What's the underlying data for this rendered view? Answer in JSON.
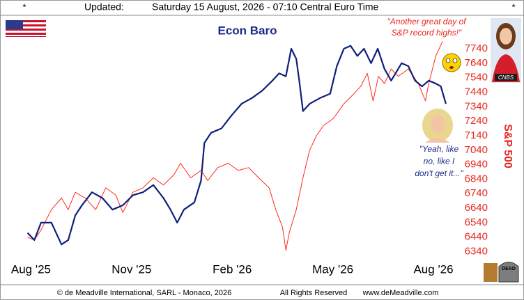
{
  "header": {
    "left_mark": "*",
    "label": "Updated:",
    "timestamp": "Saturday 15 August, 2026 - 07:10 Central Euro Time",
    "right_mark": "*"
  },
  "chart_data": {
    "type": "line",
    "title": "Econ Baro",
    "y_axis_label": "S&P 500",
    "annotations": [
      {
        "lines": [
          "\"Another great day of",
          "S&P record highs!\""
        ],
        "color": "#e8281e"
      },
      {
        "lines": [
          "\"Yeah, like",
          "no, like I",
          "don't get it...\""
        ],
        "color": "#1a2a8a"
      }
    ],
    "xlim": [
      -0.3,
      13.1
    ],
    "xticks": [
      {
        "value": 0,
        "label": "Aug '25"
      },
      {
        "value": 3,
        "label": "Nov '25"
      },
      {
        "value": 6,
        "label": "Feb '26"
      },
      {
        "value": 9,
        "label": "May '26"
      },
      {
        "value": 12,
        "label": "Aug '26"
      }
    ],
    "ylim": [
      6290,
      7980
    ],
    "yticks": [
      6340,
      6440,
      6540,
      6640,
      6740,
      6840,
      6940,
      7040,
      7140,
      7240,
      7340,
      7440,
      7540,
      7640,
      7740
    ],
    "series": [
      {
        "name": "S&P 500",
        "color": "#ff2a1a",
        "x": [
          -0.1,
          0.1,
          0.3,
          0.61,
          0.91,
          1.11,
          1.32,
          1.62,
          1.93,
          2.23,
          2.53,
          2.74,
          3.04,
          3.34,
          3.65,
          3.95,
          4.26,
          4.46,
          4.76,
          5.07,
          5.27,
          5.57,
          5.88,
          6.18,
          6.49,
          6.79,
          7.1,
          7.3,
          7.5,
          7.6,
          7.7,
          7.91,
          8.11,
          8.31,
          8.51,
          8.72,
          9.02,
          9.33,
          9.63,
          9.83,
          10.03,
          10.2,
          10.36,
          10.54,
          10.74,
          10.95,
          11.25,
          11.55,
          11.76,
          11.86,
          12.07,
          12.27
        ],
        "values": [
          6440,
          6420,
          6490,
          6630,
          6710,
          6630,
          6750,
          6710,
          6630,
          6780,
          6730,
          6610,
          6750,
          6780,
          6850,
          6800,
          6870,
          6950,
          6850,
          6900,
          6830,
          6920,
          6950,
          6900,
          6920,
          6850,
          6780,
          6630,
          6510,
          6350,
          6470,
          6630,
          6850,
          7040,
          7140,
          7210,
          7260,
          7360,
          7430,
          7480,
          7570,
          7380,
          7550,
          7500,
          7600,
          7550,
          7600,
          7500,
          7380,
          7500,
          7690,
          7790
        ]
      },
      {
        "name": "Econ Baro",
        "color": "#0d1f7a",
        "x": [
          -0.1,
          0.1,
          0.3,
          0.61,
          0.91,
          1.11,
          1.32,
          1.52,
          1.82,
          2.13,
          2.43,
          2.74,
          3.04,
          3.34,
          3.65,
          3.95,
          4.16,
          4.36,
          4.56,
          4.87,
          5.07,
          5.17,
          5.37,
          5.68,
          5.98,
          6.28,
          6.59,
          6.89,
          7.2,
          7.4,
          7.6,
          7.76,
          7.91,
          8.01,
          8.11,
          8.31,
          8.62,
          8.92,
          9.12,
          9.33,
          9.53,
          9.73,
          9.93,
          10.14,
          10.34,
          10.54,
          10.74,
          11.05,
          11.25,
          11.45,
          11.66,
          11.86,
          12.07,
          12.22,
          12.37
        ],
        "values": [
          6470,
          6420,
          6540,
          6540,
          6390,
          6420,
          6590,
          6660,
          6750,
          6710,
          6630,
          6660,
          6730,
          6750,
          6800,
          6710,
          6630,
          6540,
          6630,
          6680,
          6830,
          7090,
          7160,
          7190,
          7280,
          7360,
          7400,
          7450,
          7520,
          7570,
          7550,
          7740,
          7670,
          7500,
          7310,
          7360,
          7400,
          7430,
          7620,
          7740,
          7760,
          7690,
          7740,
          7640,
          7740,
          7600,
          7520,
          7640,
          7620,
          7520,
          7480,
          7520,
          7500,
          7480,
          7360
        ]
      }
    ]
  },
  "footer": {
    "copyright": "© de Meadville International, SARL - Monaco, 2026",
    "rights": "All Rights Reserved",
    "website": "www.deMeadville.com"
  },
  "badges": {
    "cnbs": "CNBS",
    "dead": "DEAD"
  }
}
